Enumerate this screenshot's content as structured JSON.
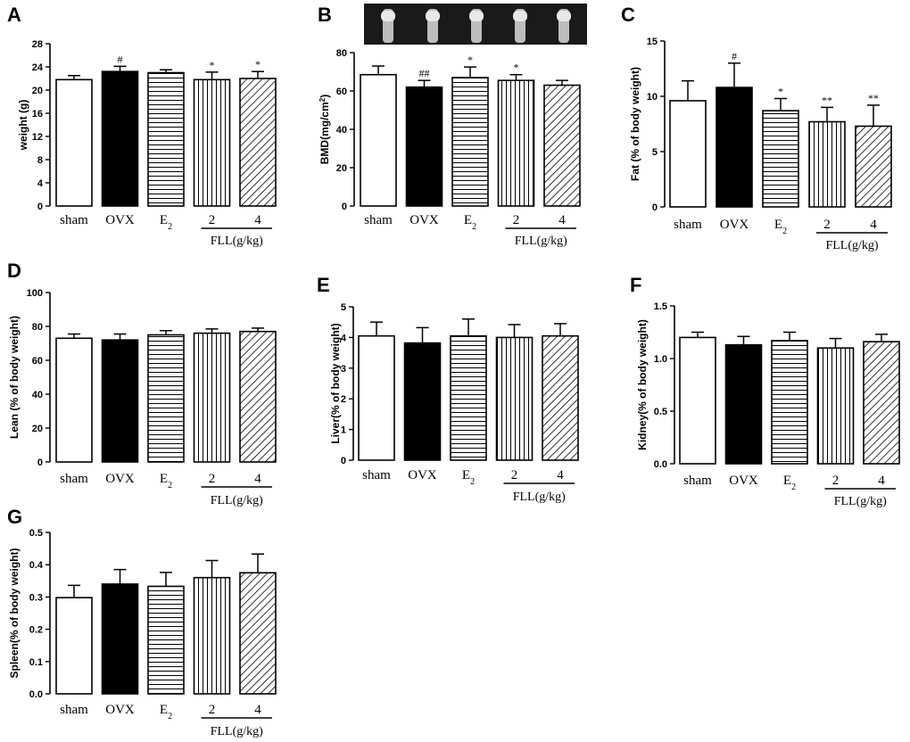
{
  "figure": {
    "group_label": "FLL(g/kg)",
    "xray_strip": "bone X-ray images (5 samples)"
  },
  "colors": {
    "open": "#ffffff",
    "ovx": "#000000",
    "stroke": "#000000",
    "xray_bg": "#1a1a1a"
  },
  "chart_data": [
    {
      "panel": "A",
      "type": "bar",
      "ylabel": "weight (g)",
      "categories": [
        "sham",
        "OVX",
        "E2",
        "2",
        "4"
      ],
      "values": [
        21.8,
        23.2,
        23.0,
        21.8,
        22.0
      ],
      "errors": [
        0.7,
        0.9,
        0.5,
        1.3,
        1.2
      ],
      "significance": [
        "",
        "#",
        "",
        "*",
        "*"
      ],
      "ylim": [
        0,
        28
      ],
      "yticks": [
        0,
        4,
        8,
        12,
        16,
        20,
        24,
        28
      ],
      "tick_labels": [
        "0",
        "4",
        "8",
        "12",
        "16",
        "20",
        "24",
        "28"
      ]
    },
    {
      "panel": "B",
      "type": "bar",
      "ylabel": "BMD(mg/cm2)",
      "categories": [
        "sham",
        "OVX",
        "E2",
        "2",
        "4"
      ],
      "values": [
        68.5,
        62.0,
        67.0,
        65.5,
        63.0
      ],
      "errors": [
        4.5,
        3.5,
        5.5,
        3.0,
        2.5
      ],
      "significance": [
        "",
        "##",
        "*",
        "*",
        ""
      ],
      "ylim": [
        0,
        80
      ],
      "yticks": [
        0,
        20,
        40,
        60,
        80
      ],
      "tick_labels": [
        "0",
        "20",
        "40",
        "60",
        "80"
      ]
    },
    {
      "panel": "C",
      "type": "bar",
      "ylabel": "Fat (% of body weight)",
      "categories": [
        "sham",
        "OVX",
        "E2",
        "2",
        "4"
      ],
      "values": [
        9.6,
        10.8,
        8.7,
        7.7,
        7.3
      ],
      "errors": [
        1.8,
        2.2,
        1.1,
        1.3,
        1.9
      ],
      "significance": [
        "",
        "#",
        "*",
        "**",
        "**"
      ],
      "ylim": [
        0,
        15
      ],
      "yticks": [
        0,
        5,
        10,
        15
      ],
      "tick_labels": [
        "0",
        "5",
        "10",
        "15"
      ]
    },
    {
      "panel": "D",
      "type": "bar",
      "ylabel": "Lean (% of body weight)",
      "categories": [
        "sham",
        "OVX",
        "E2",
        "2",
        "4"
      ],
      "values": [
        73,
        72,
        75,
        76,
        77
      ],
      "errors": [
        2.5,
        3.5,
        2.5,
        2.5,
        2.0
      ],
      "significance": [
        "",
        "",
        "",
        "",
        ""
      ],
      "ylim": [
        0,
        100
      ],
      "yticks": [
        0,
        20,
        40,
        60,
        80,
        100
      ],
      "tick_labels": [
        "0",
        "20",
        "40",
        "60",
        "80",
        "100"
      ]
    },
    {
      "panel": "E",
      "type": "bar",
      "ylabel": "Liver(% of body weight)",
      "categories": [
        "sham",
        "OVX",
        "E2",
        "2",
        "4"
      ],
      "values": [
        4.05,
        3.82,
        4.05,
        4.0,
        4.05
      ],
      "errors": [
        0.45,
        0.5,
        0.55,
        0.42,
        0.4
      ],
      "significance": [
        "",
        "",
        "",
        "",
        ""
      ],
      "ylim": [
        0,
        5
      ],
      "yticks": [
        0,
        1,
        2,
        3,
        4,
        5
      ],
      "tick_labels": [
        "0",
        "1",
        "2",
        "3",
        "4",
        "5"
      ]
    },
    {
      "panel": "F",
      "type": "bar",
      "ylabel": "Kidney(% of body weight)",
      "categories": [
        "sham",
        "OVX",
        "E2",
        "2",
        "4"
      ],
      "values": [
        1.2,
        1.13,
        1.17,
        1.1,
        1.16
      ],
      "errors": [
        0.05,
        0.08,
        0.08,
        0.09,
        0.07
      ],
      "significance": [
        "",
        "",
        "",
        "",
        ""
      ],
      "ylim": [
        0,
        1.5
      ],
      "yticks": [
        0,
        0.5,
        1.0,
        1.5
      ],
      "tick_labels": [
        "0.0",
        "0.5",
        "1.0",
        "1.5"
      ]
    },
    {
      "panel": "G",
      "type": "bar",
      "ylabel": "Spleen(% of body weight)",
      "categories": [
        "sham",
        "OVX",
        "E2",
        "2",
        "4"
      ],
      "values": [
        0.298,
        0.34,
        0.333,
        0.36,
        0.375
      ],
      "errors": [
        0.038,
        0.045,
        0.043,
        0.053,
        0.058
      ],
      "significance": [
        "",
        "",
        "",
        "",
        ""
      ],
      "ylim": [
        0,
        0.5
      ],
      "yticks": [
        0,
        0.1,
        0.2,
        0.3,
        0.4,
        0.5
      ],
      "tick_labels": [
        "0.0",
        "0.1",
        "0.2",
        "0.3",
        "0.4",
        "0.5"
      ]
    }
  ]
}
